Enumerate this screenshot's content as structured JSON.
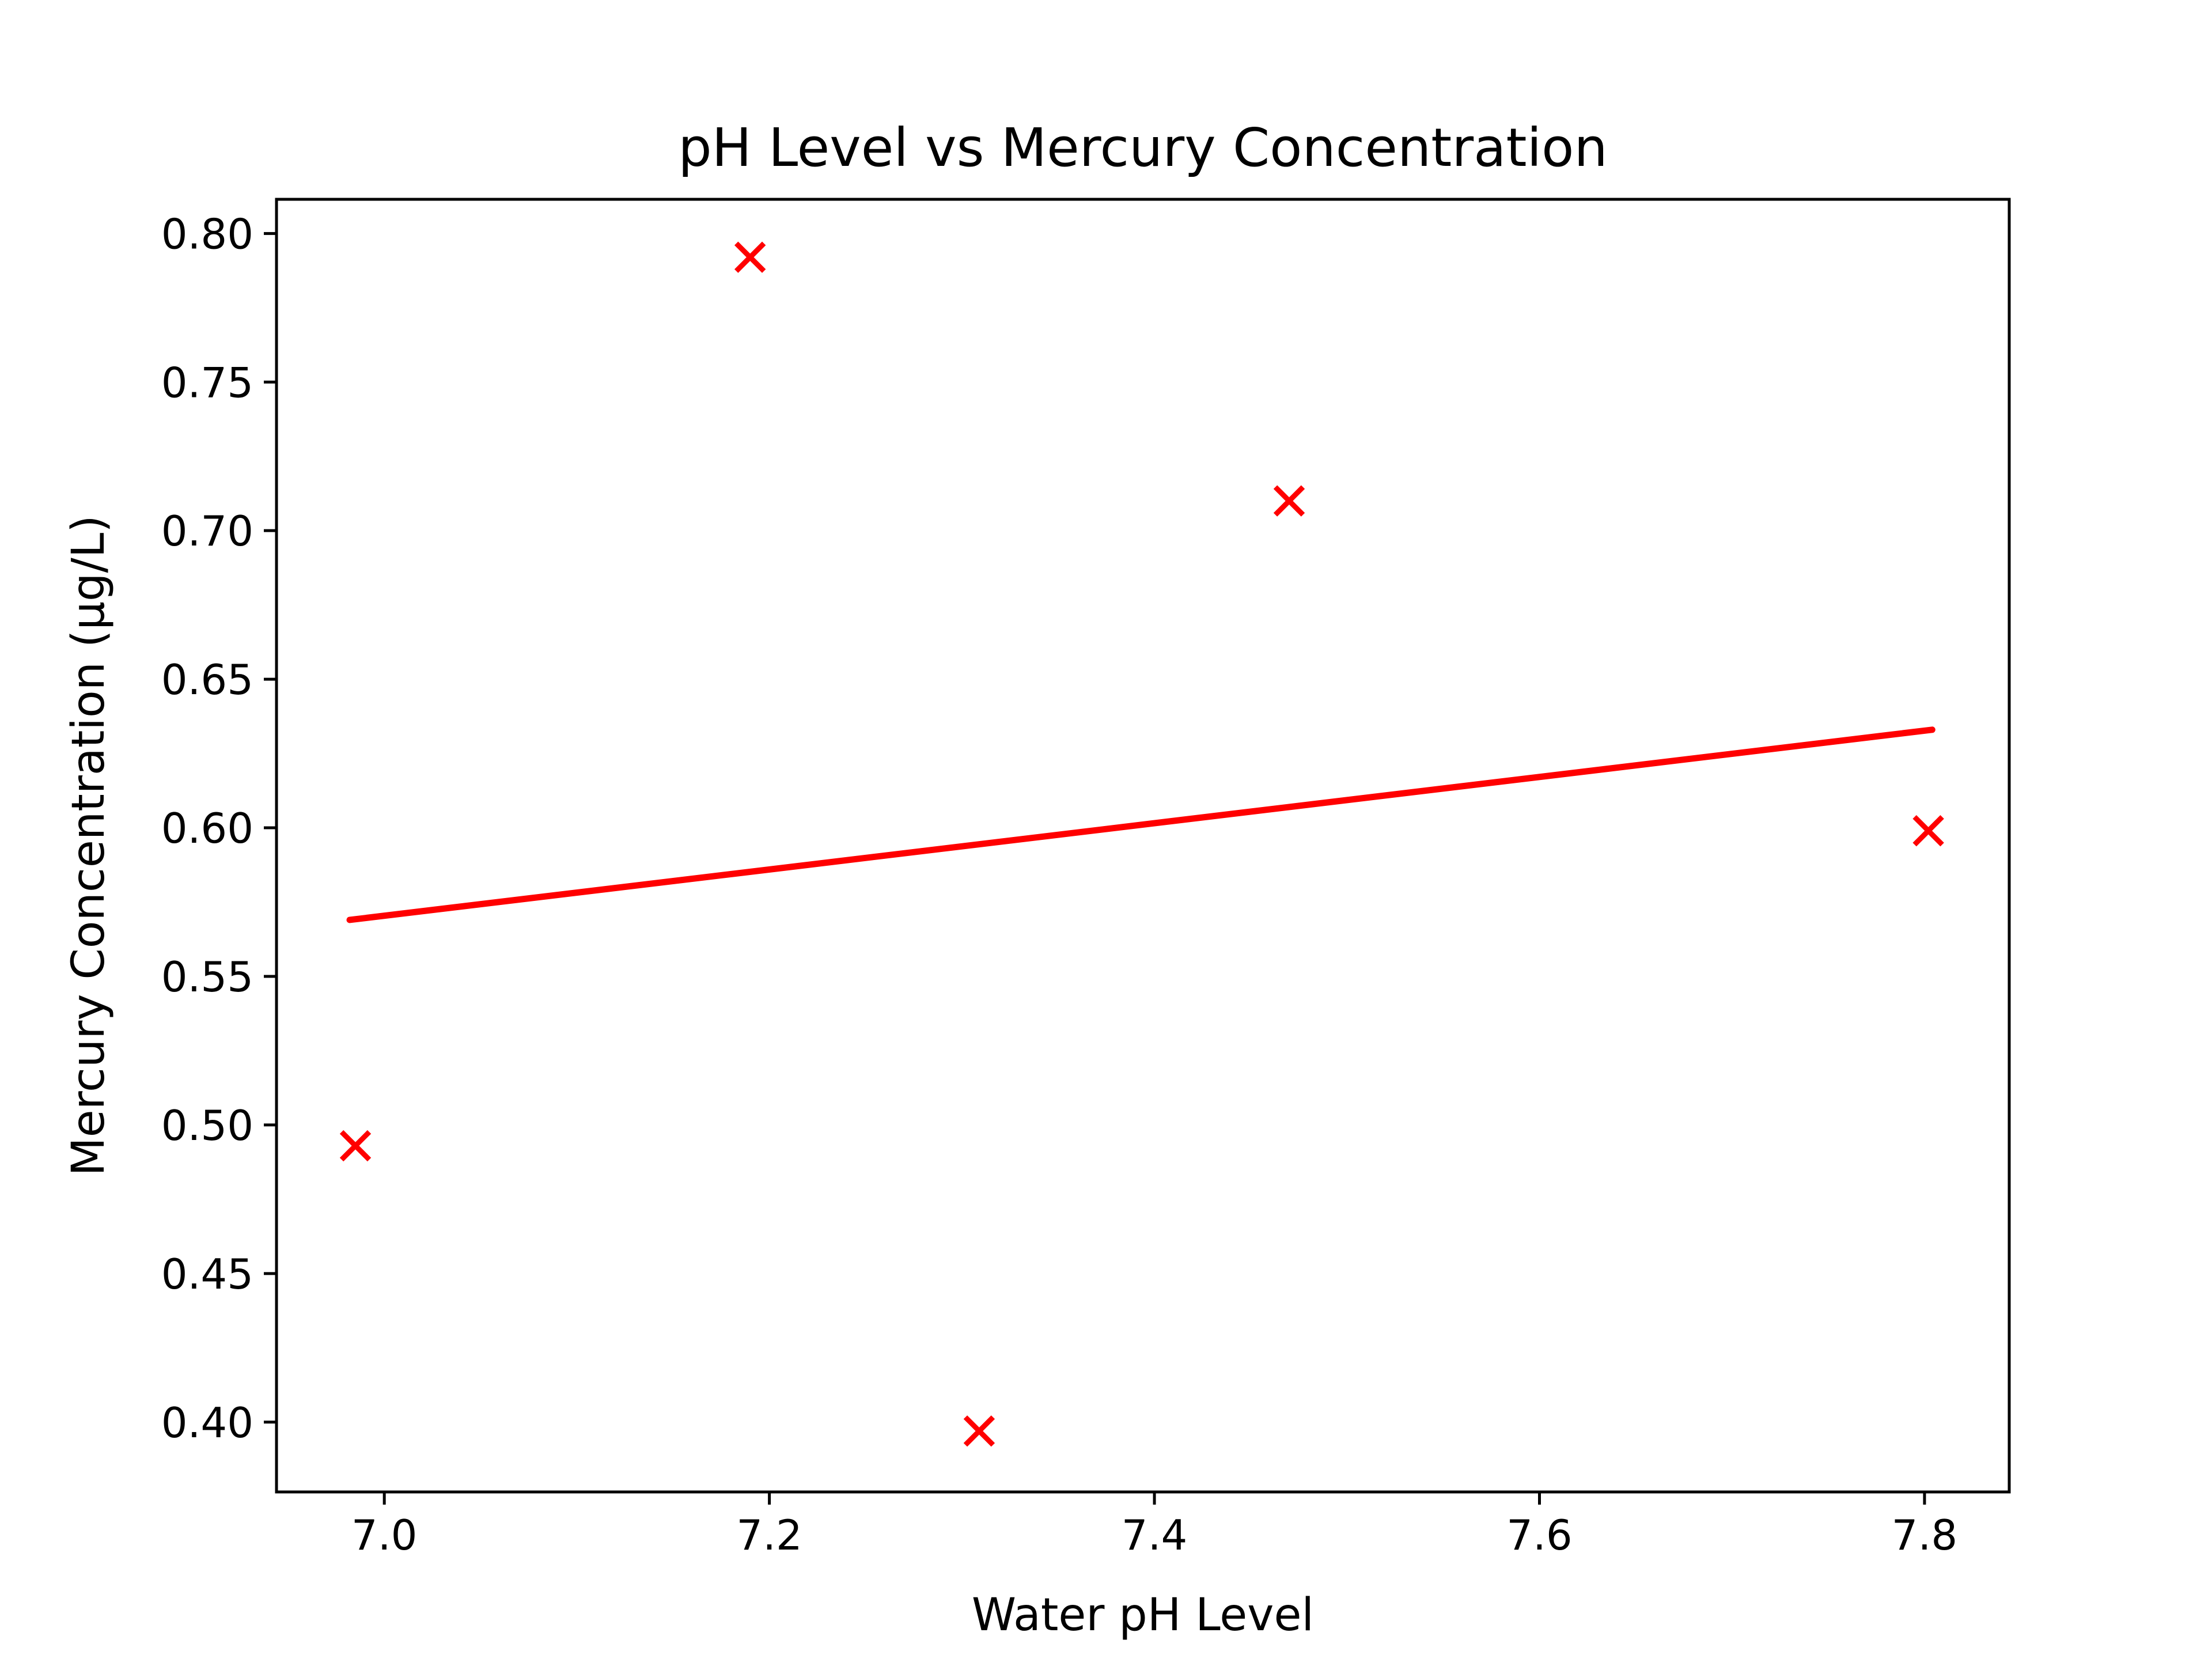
{
  "chart_data": {
    "type": "scatter",
    "title": "pH Level vs Mercury Concentration",
    "xlabel": "Water pH Level",
    "ylabel": "Mercury Concentration (µg/L)",
    "xlim": [
      6.944,
      7.844
    ],
    "ylim": [
      0.3765,
      0.8115
    ],
    "xticks": [
      7.0,
      7.2,
      7.4,
      7.6,
      7.8
    ],
    "xtick_labels": [
      "7.0",
      "7.2",
      "7.4",
      "7.6",
      "7.8"
    ],
    "yticks": [
      0.4,
      0.45,
      0.5,
      0.55,
      0.6,
      0.65,
      0.7,
      0.75,
      0.8
    ],
    "ytick_labels": [
      "0.40",
      "0.45",
      "0.50",
      "0.55",
      "0.60",
      "0.65",
      "0.70",
      "0.75",
      "0.80"
    ],
    "grid": false,
    "legend": "none",
    "points": {
      "marker": "x",
      "color": "#ff0000",
      "x": [
        6.985,
        7.19,
        7.309,
        7.47,
        7.802
      ],
      "y": [
        0.493,
        0.792,
        0.397,
        0.71,
        0.599
      ]
    },
    "trend_line": {
      "color": "#ff0000",
      "x": [
        6.982,
        7.804
      ],
      "y": [
        0.569,
        0.633
      ]
    }
  }
}
